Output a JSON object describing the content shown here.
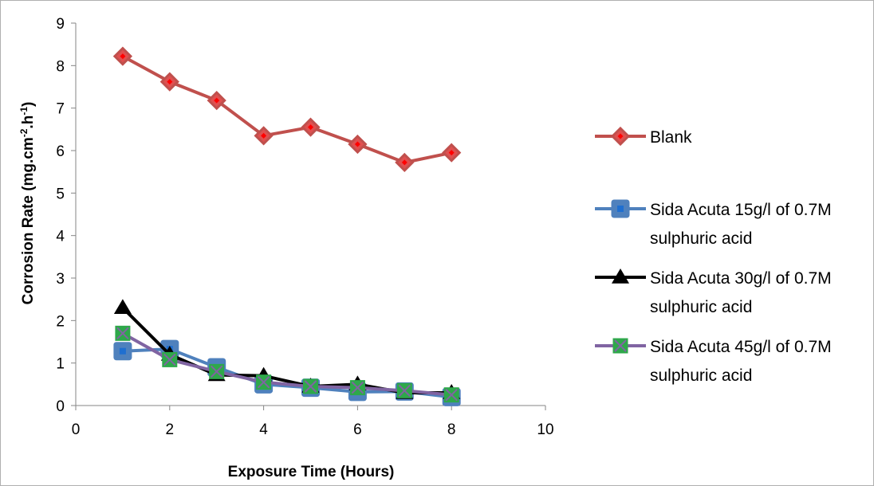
{
  "chart_data": {
    "type": "line",
    "xlabel": "Exposure Time (Hours)",
    "ylabel": "Corrosion Rate  (mg.cm",
    "ylabel_sup1": "-2",
    "ylabel_mid": ".h",
    "ylabel_sup2": "-1",
    "ylabel_end": ")",
    "xlim": [
      0,
      10
    ],
    "ylim": [
      0,
      9
    ],
    "xticks": [
      "0",
      "2",
      "4",
      "6",
      "8",
      "10"
    ],
    "yticks": [
      "0",
      "1",
      "2",
      "3",
      "4",
      "5",
      "6",
      "7",
      "8",
      "9"
    ],
    "grid": false,
    "legend_position": "right",
    "series": [
      {
        "name": "Blank",
        "legend_lines": [
          "Blank"
        ],
        "color": "#c0504d",
        "marker": "diamond",
        "marker_fill": "#e05050",
        "marker_inner": "#ff0000",
        "x": [
          1,
          2,
          3,
          4,
          5,
          6,
          7,
          8
        ],
        "y": [
          8.22,
          7.62,
          7.18,
          6.35,
          6.55,
          6.15,
          5.72,
          5.95
        ]
      },
      {
        "name": "Sida Acuta 15g/l of 0.7M sulphuric acid",
        "legend_lines": [
          "Sida Acuta 15g/l of 0.7M",
          "sulphuric acid"
        ],
        "color": "#4f81bd",
        "marker": "square",
        "marker_fill": "#4f81bd",
        "marker_inner": "#1f6fd0",
        "x": [
          1,
          2,
          3,
          4,
          5,
          6,
          7,
          8
        ],
        "y": [
          1.28,
          1.33,
          0.9,
          0.5,
          0.42,
          0.32,
          0.33,
          0.2
        ]
      },
      {
        "name": "Sida Acuta 30g/l of 0.7M sulphuric acid",
        "legend_lines": [
          "Sida Acuta 30g/l of 0.7M",
          "sulphuric acid"
        ],
        "color": "#000000",
        "marker": "triangle",
        "marker_fill": "#000000",
        "marker_inner": "#000000",
        "x": [
          1,
          2,
          3,
          4,
          5,
          6,
          7,
          8
        ],
        "y": [
          2.3,
          1.2,
          0.72,
          0.7,
          0.45,
          0.5,
          0.3,
          0.3
        ]
      },
      {
        "name": "Sida Acuta 45g/l of 0.7M sulphuric acid",
        "legend_lines": [
          "Sida Acuta 45g/l of 0.7M",
          "sulphuric acid"
        ],
        "color": "#8064a2",
        "marker": "square-x",
        "marker_fill": "#2ea84a",
        "marker_inner": "#8064a2",
        "x": [
          1,
          2,
          3,
          4,
          5,
          6,
          7,
          8
        ],
        "y": [
          1.7,
          1.08,
          0.8,
          0.55,
          0.45,
          0.42,
          0.35,
          0.25
        ]
      }
    ]
  }
}
